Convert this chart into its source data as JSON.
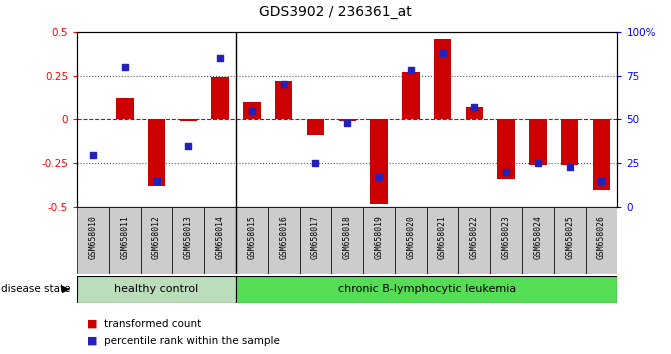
{
  "title": "GDS3902 / 236361_at",
  "samples": [
    "GSM658010",
    "GSM658011",
    "GSM658012",
    "GSM658013",
    "GSM658014",
    "GSM658015",
    "GSM658016",
    "GSM658017",
    "GSM658018",
    "GSM658019",
    "GSM658020",
    "GSM658021",
    "GSM658022",
    "GSM658023",
    "GSM658024",
    "GSM658025",
    "GSM658026"
  ],
  "bar_values": [
    0.0,
    0.12,
    -0.38,
    -0.01,
    0.24,
    0.1,
    0.22,
    -0.09,
    -0.01,
    -0.48,
    0.27,
    0.46,
    0.07,
    -0.34,
    -0.26,
    -0.26,
    -0.4
  ],
  "dot_pct": [
    30,
    80,
    15,
    35,
    85,
    55,
    70,
    25,
    48,
    17,
    78,
    88,
    57,
    20,
    25,
    23,
    15
  ],
  "healthy_count": 5,
  "bar_color": "#cc0000",
  "dot_color": "#2222bb",
  "ylim_left": [
    -0.5,
    0.5
  ],
  "ylim_right": [
    0,
    100
  ],
  "yticks_left": [
    -0.5,
    -0.25,
    0.0,
    0.25,
    0.5
  ],
  "ytick_labels_left": [
    "-0.5",
    "-0.25",
    "0",
    "0.25",
    "0.5"
  ],
  "yticks_right": [
    0,
    25,
    50,
    75,
    100
  ],
  "ytick_labels_right": [
    "0",
    "25",
    "50",
    "75",
    "100%"
  ],
  "healthy_label": "healthy control",
  "disease_label": "chronic B-lymphocytic leukemia",
  "disease_state_label": "disease state",
  "legend_bar_label": "transformed count",
  "legend_dot_label": "percentile rank within the sample",
  "healthy_bg": "#bbddbb",
  "disease_bg": "#55dd55",
  "tickbox_bg": "#cccccc",
  "dashed_zero_color": "#cc0000",
  "dotted_color": "#555555"
}
